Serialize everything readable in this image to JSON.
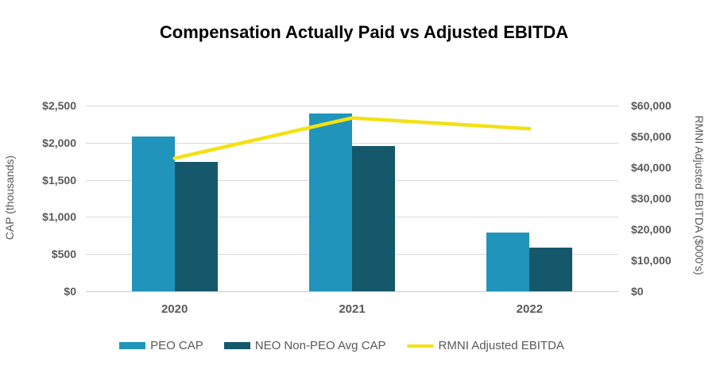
{
  "title": "Compensation Actually Paid vs Adjusted EBITDA",
  "chart_data": {
    "type": "bar",
    "subtype": "grouped-bar-with-line-combo",
    "title": "Compensation Actually Paid vs Adjusted EBITDA",
    "categories": [
      "2020",
      "2021",
      "2022"
    ],
    "series": [
      {
        "name": "PEO CAP",
        "kind": "bar",
        "axis": "left",
        "color": "#2094bb",
        "values": [
          2080,
          2390,
          790
        ]
      },
      {
        "name": "NEO Non-PEO Avg CAP",
        "kind": "bar",
        "axis": "left",
        "color": "#15586c",
        "values": [
          1740,
          1960,
          585
        ]
      },
      {
        "name": "RMNI Adjusted EBITDA",
        "kind": "line",
        "axis": "right",
        "color": "#f3e112",
        "values": [
          43000,
          56000,
          52500
        ]
      }
    ],
    "left_axis": {
      "title": "CAP (thousands)",
      "min": 0,
      "max": 2500,
      "step": 500,
      "ticks": [
        {
          "value": 0,
          "label": "$0"
        },
        {
          "value": 500,
          "label": "$500"
        },
        {
          "value": 1000,
          "label": "$1,000"
        },
        {
          "value": 1500,
          "label": "$1,500"
        },
        {
          "value": 2000,
          "label": "$2,000"
        },
        {
          "value": 2500,
          "label": "$2,500"
        }
      ]
    },
    "right_axis": {
      "title": "RMNI Adjusted EBITDA ($000's)",
      "min": 0,
      "max": 60000,
      "step": 10000,
      "ticks": [
        {
          "value": 0,
          "label": "$0"
        },
        {
          "value": 10000,
          "label": "$10,000"
        },
        {
          "value": 20000,
          "label": "$20,000"
        },
        {
          "value": 30000,
          "label": "$30,000"
        },
        {
          "value": 40000,
          "label": "$40,000"
        },
        {
          "value": 50000,
          "label": "$50,000"
        },
        {
          "value": 60000,
          "label": "$60,000"
        }
      ]
    },
    "grid": true,
    "legend_position": "bottom",
    "legend": [
      {
        "label": "PEO CAP",
        "marker": "bar",
        "color": "#2094bb"
      },
      {
        "label": "NEO Non-PEO Avg CAP",
        "marker": "bar",
        "color": "#15586c"
      },
      {
        "label": "RMNI Adjusted EBITDA",
        "marker": "line",
        "color": "#f3e112"
      }
    ],
    "colors": {
      "gridline": "#d9d9d9",
      "axis_line": "#c6ccc6",
      "text": "#595959",
      "title_text": "#000000"
    }
  }
}
